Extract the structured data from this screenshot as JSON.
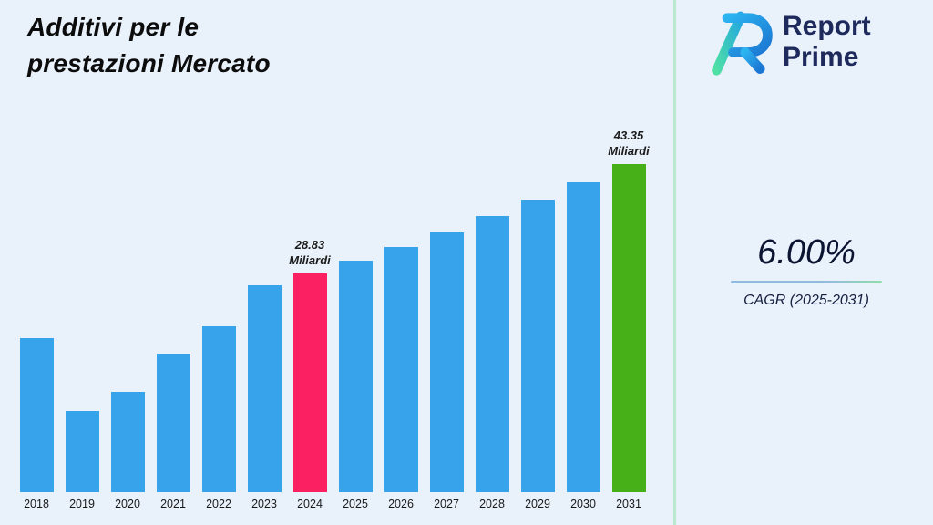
{
  "background": "#e9f1fb",
  "title": {
    "line1": "Additivi per le",
    "line2": "prestazioni Mercato"
  },
  "brand": {
    "name_line1": "Report",
    "name_line2": "Prime",
    "text_color": "#1e2a5c"
  },
  "stats": {
    "cagr_value": "6.00%",
    "cagr_label": "CAGR (2025-2031)"
  },
  "divider_color": "#b9ead0",
  "chart_data": {
    "type": "bar",
    "title": "Additivi per le prestazioni Mercato",
    "unit": "Miliardi",
    "categories": [
      "2018",
      "2019",
      "2020",
      "2021",
      "2022",
      "2023",
      "2024",
      "2025",
      "2026",
      "2027",
      "2028",
      "2029",
      "2030",
      "2031"
    ],
    "values": [
      20.3,
      10.7,
      13.2,
      18.3,
      21.9,
      27.3,
      28.83,
      30.56,
      32.39,
      34.34,
      36.4,
      38.58,
      40.9,
      43.35
    ],
    "ylim": [
      0,
      45
    ],
    "grid": false,
    "legend": false,
    "annotations": [
      {
        "category": "2024",
        "lines": [
          "28.83",
          "Miliardi"
        ]
      },
      {
        "category": "2031",
        "lines": [
          "43.35",
          "Miliardi"
        ]
      }
    ],
    "bar_colors": {
      "default": "#36a3ea",
      "2024": "#fb2061",
      "2031": "#47b019"
    }
  }
}
